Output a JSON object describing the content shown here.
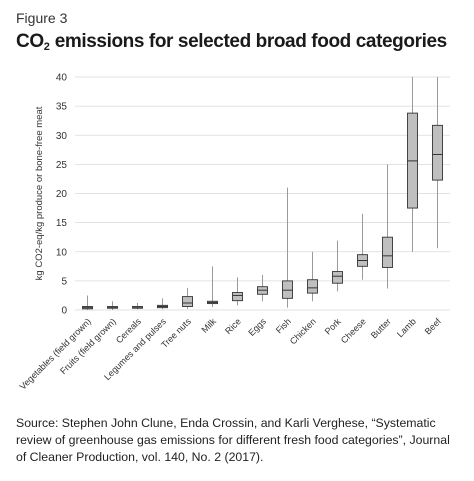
{
  "figure_label": "Figure 3",
  "title": {
    "main_prefix": "CO",
    "subscript": "2",
    "main_suffix": " emissions for selected broad food categories"
  },
  "source": "Source: Stephen John Clune, Enda Crossin, and Karli Verghese, “Systematic review of greenhouse gas emissions for different fresh food categories”, Journal of Cleaner Production, vol. 140, No. 2 (2017).",
  "chart_data": {
    "type": "boxplot",
    "ylabel": "kg CO2-eq/kg produce or bone-free meat",
    "xlabel": "",
    "ylim": [
      0,
      40
    ],
    "yticks": [
      0,
      5,
      10,
      15,
      20,
      25,
      30,
      35,
      40
    ],
    "grid": true,
    "box_color": "#bfbfbf",
    "categories": [
      "Vegetables (field grown)",
      "Fruits (field grown)",
      "Cereals",
      "Legumes and pulses",
      "Tree nuts",
      "Milk",
      "Rice",
      "Eggs",
      "Fish",
      "Chicken",
      "Pork",
      "Cheese",
      "Butter",
      "Lamb",
      "Beef"
    ],
    "boxes": [
      {
        "min": 0.0,
        "q1": 0.2,
        "median": 0.4,
        "q3": 0.6,
        "max": 2.5
      },
      {
        "min": 0.0,
        "q1": 0.3,
        "median": 0.4,
        "q3": 0.6,
        "max": 1.5
      },
      {
        "min": 0.1,
        "q1": 0.3,
        "median": 0.5,
        "q3": 0.6,
        "max": 1.2
      },
      {
        "min": 0.1,
        "q1": 0.4,
        "median": 0.6,
        "q3": 0.8,
        "max": 2.0
      },
      {
        "min": 0.2,
        "q1": 0.6,
        "median": 1.2,
        "q3": 2.3,
        "max": 3.8
      },
      {
        "min": 0.5,
        "q1": 1.1,
        "median": 1.3,
        "q3": 1.5,
        "max": 7.5
      },
      {
        "min": 0.8,
        "q1": 1.6,
        "median": 2.5,
        "q3": 3.0,
        "max": 5.6
      },
      {
        "min": 1.5,
        "q1": 2.7,
        "median": 3.4,
        "q3": 4.0,
        "max": 6.0
      },
      {
        "min": 0.4,
        "q1": 2.0,
        "median": 3.4,
        "q3": 5.0,
        "max": 21.0
      },
      {
        "min": 1.5,
        "q1": 2.9,
        "median": 3.8,
        "q3": 5.2,
        "max": 10.0
      },
      {
        "min": 3.2,
        "q1": 4.6,
        "median": 5.8,
        "q3": 6.6,
        "max": 11.9
      },
      {
        "min": 5.2,
        "q1": 7.5,
        "median": 8.5,
        "q3": 9.5,
        "max": 16.5
      },
      {
        "min": 3.7,
        "q1": 7.3,
        "median": 9.3,
        "q3": 12.5,
        "max": 25.0
      },
      {
        "min": 10.0,
        "q1": 17.5,
        "median": 25.6,
        "q3": 33.8,
        "max": 40.0
      },
      {
        "min": 10.6,
        "q1": 22.3,
        "median": 26.7,
        "q3": 31.7,
        "max": 40.0
      }
    ]
  }
}
